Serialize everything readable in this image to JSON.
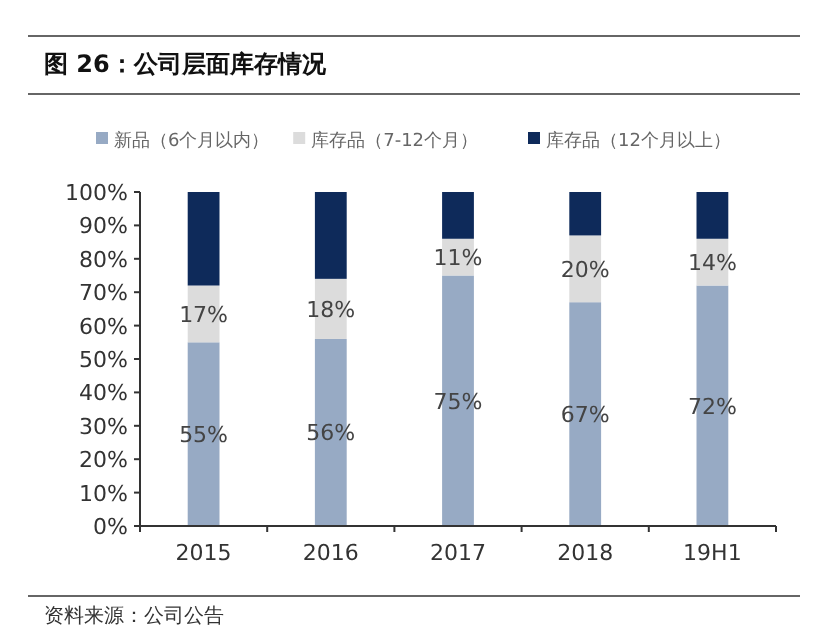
{
  "chart_data": {
    "type": "bar",
    "stacked": true,
    "title": "图 26：公司层面库存情况",
    "categories": [
      "2015",
      "2016",
      "2017",
      "2018",
      "19H1"
    ],
    "series": [
      {
        "name": "新品（6个月以内）",
        "color": "#97aac4",
        "values": [
          55,
          56,
          75,
          67,
          72
        ],
        "value_labels": [
          "55%",
          "56%",
          "75%",
          "67%",
          "72%"
        ]
      },
      {
        "name": "库存品（7-12个月）",
        "color": "#dcdcdc",
        "values": [
          17,
          18,
          11,
          20,
          14
        ],
        "value_labels": [
          "17%",
          "18%",
          "11%",
          "20%",
          "14%"
        ]
      },
      {
        "name": "库存品（12个月以上）",
        "color": "#0e2a5a",
        "values": [
          28,
          26,
          14,
          13,
          14
        ]
      }
    ],
    "ylim": [
      0,
      100
    ],
    "yticks": [
      {
        "value": 0,
        "label": "0%"
      },
      {
        "value": 10,
        "label": "10%"
      },
      {
        "value": 20,
        "label": "20%"
      },
      {
        "value": 30,
        "label": "30%"
      },
      {
        "value": 40,
        "label": "40%"
      },
      {
        "value": 50,
        "label": "50%"
      },
      {
        "value": 60,
        "label": "60%"
      },
      {
        "value": 70,
        "label": "70%"
      },
      {
        "value": 80,
        "label": "80%"
      },
      {
        "value": 90,
        "label": "90%"
      },
      {
        "value": 100,
        "label": "100%"
      }
    ],
    "legend": "top",
    "annotations": [
      "资料来源：公司公告"
    ]
  }
}
